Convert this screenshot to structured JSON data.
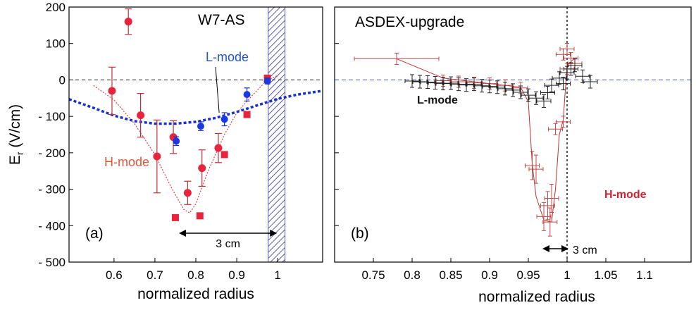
{
  "chart_data": [
    {
      "type": "scatter",
      "panel_label": "(a)",
      "title": "W7-AS",
      "xlabel": "normalized radius",
      "ylabel_main": "E",
      "ylabel_sub": "r",
      "ylabel_unit": " (V/cm)",
      "xlim": [
        0.49,
        1.11
      ],
      "ylim": [
        -500,
        200
      ],
      "x_ticks": [
        0.6,
        0.7,
        0.8,
        0.9,
        1
      ],
      "x_tick_labels": [
        "0.6",
        "0.7",
        "0.8",
        "0.9",
        "1"
      ],
      "y_ticks": [
        200,
        100,
        0,
        -100,
        -200,
        -300,
        -400,
        -500
      ],
      "y_tick_labels": [
        "200",
        "100",
        "0",
        "- 100",
        "- 200",
        "- 300",
        "- 400",
        "- 500"
      ],
      "annotations": {
        "l_mode": "L-mode",
        "h_mode": "H-mode",
        "scale": "3 cm"
      },
      "separatrix_band": [
        0.977,
        1.018
      ],
      "h_mode_circles": [
        {
          "x": 0.635,
          "y": 160,
          "err": 35
        },
        {
          "x": 0.595,
          "y": -30,
          "err": 65
        },
        {
          "x": 0.665,
          "y": -97,
          "err": 60
        },
        {
          "x": 0.705,
          "y": -210,
          "err": 100
        },
        {
          "x": 0.745,
          "y": -157,
          "err": 45
        },
        {
          "x": 0.78,
          "y": -310,
          "err": 32
        },
        {
          "x": 0.815,
          "y": -242,
          "err": 50
        },
        {
          "x": 0.855,
          "y": -187,
          "err": 40
        }
      ],
      "h_mode_squares": [
        {
          "x": 0.75,
          "y": -378
        },
        {
          "x": 0.81,
          "y": -373
        },
        {
          "x": 0.87,
          "y": -205
        },
        {
          "x": 0.925,
          "y": -95
        },
        {
          "x": 0.975,
          "y": 5
        }
      ],
      "l_mode_points": [
        {
          "x": 0.752,
          "y": -168,
          "err": 12
        },
        {
          "x": 0.812,
          "y": -127,
          "err": 12
        },
        {
          "x": 0.87,
          "y": -108,
          "err": 18
        },
        {
          "x": 0.925,
          "y": -40,
          "err": 18
        },
        {
          "x": 0.975,
          "y": -3,
          "err": 8
        }
      ],
      "l_mode_fit": [
        [
          0.49,
          -53
        ],
        [
          0.55,
          -77
        ],
        [
          0.6,
          -98
        ],
        [
          0.65,
          -113
        ],
        [
          0.7,
          -120
        ],
        [
          0.75,
          -120
        ],
        [
          0.8,
          -115
        ],
        [
          0.85,
          -104
        ],
        [
          0.9,
          -88
        ],
        [
          0.95,
          -70
        ],
        [
          1.0,
          -52
        ],
        [
          1.05,
          -40
        ],
        [
          1.11,
          -30
        ]
      ],
      "h_mode_fit": [
        [
          0.55,
          -15
        ],
        [
          0.6,
          -55
        ],
        [
          0.65,
          -120
        ],
        [
          0.7,
          -205
        ],
        [
          0.74,
          -295
        ],
        [
          0.77,
          -355
        ],
        [
          0.785,
          -365
        ],
        [
          0.8,
          -340
        ],
        [
          0.83,
          -250
        ],
        [
          0.87,
          -150
        ],
        [
          0.9,
          -90
        ],
        [
          0.94,
          -40
        ],
        [
          0.97,
          -5
        ],
        [
          1.0,
          12
        ]
      ]
    },
    {
      "type": "scatter",
      "panel_label": "(b)",
      "title": "ASDEX-upgrade",
      "xlabel": "normalized radius",
      "xlim": [
        0.7,
        1.16
      ],
      "ylim": [
        -500,
        200
      ],
      "x_ticks": [
        0.75,
        0.8,
        0.85,
        0.9,
        0.95,
        1,
        1.05,
        1.1
      ],
      "x_tick_labels": [
        "0.75",
        "0.8",
        "0.85",
        "0.9",
        "0.95",
        "1",
        "1.05",
        "1.1"
      ],
      "annotations": {
        "l_mode": "L-mode",
        "h_mode": "H-mode",
        "scale": "3 cm"
      },
      "l_mode_points": [
        {
          "x": 0.8,
          "y": -3
        },
        {
          "x": 0.81,
          "y": -5
        },
        {
          "x": 0.82,
          "y": -6
        },
        {
          "x": 0.83,
          "y": -8
        },
        {
          "x": 0.84,
          "y": -10
        },
        {
          "x": 0.85,
          "y": -9
        },
        {
          "x": 0.86,
          "y": -12
        },
        {
          "x": 0.87,
          "y": -14
        },
        {
          "x": 0.88,
          "y": -12
        },
        {
          "x": 0.89,
          "y": -16
        },
        {
          "x": 0.9,
          "y": -18
        },
        {
          "x": 0.91,
          "y": -20
        },
        {
          "x": 0.92,
          "y": -24
        },
        {
          "x": 0.93,
          "y": -28
        },
        {
          "x": 0.94,
          "y": -34
        },
        {
          "x": 0.95,
          "y": -42
        },
        {
          "x": 0.96,
          "y": -50
        },
        {
          "x": 0.97,
          "y": -58
        },
        {
          "x": 0.975,
          "y": -35
        },
        {
          "x": 0.98,
          "y": -15
        },
        {
          "x": 0.99,
          "y": 5
        },
        {
          "x": 1.0,
          "y": 20
        },
        {
          "x": 1.005,
          "y": 30
        },
        {
          "x": 1.01,
          "y": 40
        },
        {
          "x": 1.02,
          "y": 10
        },
        {
          "x": 1.03,
          "y": -5
        },
        {
          "x": 0.995,
          "y": -10
        }
      ],
      "h_mode_points": [
        {
          "x": 0.78,
          "y": 58
        },
        {
          "x": 0.84,
          "y": -2
        },
        {
          "x": 0.86,
          "y": -5
        },
        {
          "x": 0.88,
          "y": -8
        },
        {
          "x": 0.9,
          "y": -10
        },
        {
          "x": 0.92,
          "y": -15
        },
        {
          "x": 0.94,
          "y": -22
        },
        {
          "x": 0.955,
          "y": -235
        },
        {
          "x": 0.96,
          "y": -245
        },
        {
          "x": 0.975,
          "y": -345
        },
        {
          "x": 0.97,
          "y": -375
        },
        {
          "x": 0.978,
          "y": -390
        },
        {
          "x": 0.98,
          "y": -325
        },
        {
          "x": 0.985,
          "y": -135
        },
        {
          "x": 0.995,
          "y": -115
        },
        {
          "x": 1.0,
          "y": 30
        },
        {
          "x": 1.005,
          "y": 60
        },
        {
          "x": 1.01,
          "y": 45
        },
        {
          "x": 0.995,
          "y": 70
        },
        {
          "x": 1.0,
          "y": 85
        }
      ],
      "h_mode_fit": [
        [
          0.78,
          58
        ],
        [
          0.84,
          5
        ],
        [
          0.9,
          -10
        ],
        [
          0.94,
          -20
        ],
        [
          0.95,
          -60
        ],
        [
          0.955,
          -230
        ],
        [
          0.96,
          -320
        ],
        [
          0.97,
          -385
        ],
        [
          0.98,
          -390
        ],
        [
          0.985,
          -300
        ],
        [
          0.99,
          -150
        ],
        [
          0.995,
          -110
        ],
        [
          1.0,
          40
        ],
        [
          1.01,
          60
        ]
      ]
    }
  ]
}
